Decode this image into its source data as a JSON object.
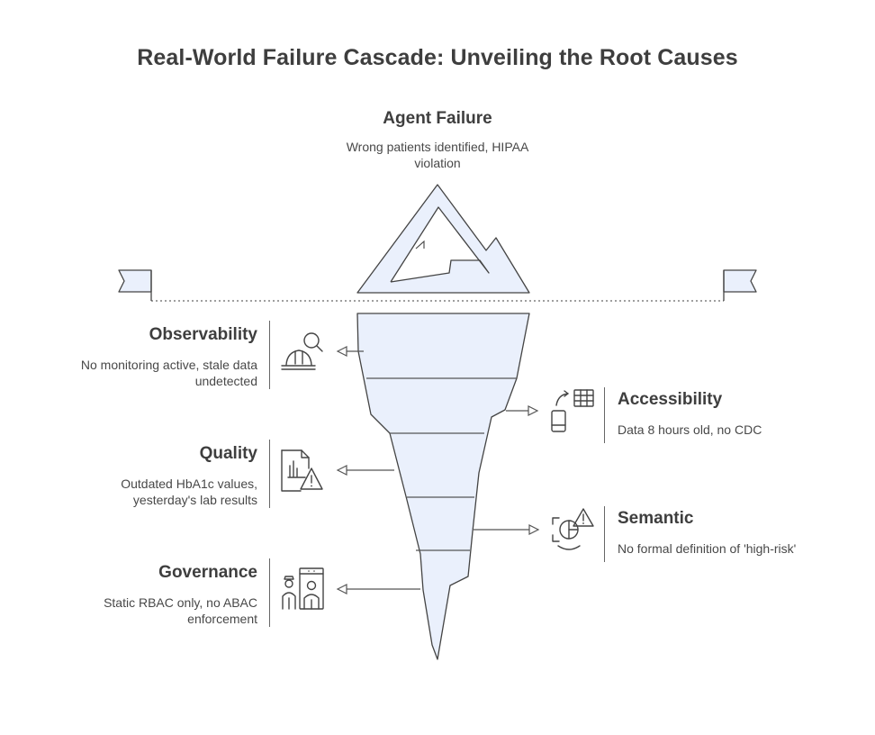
{
  "title": "Real-World Failure Cascade: Unveiling the Root Causes",
  "tip": {
    "heading": "Agent Failure",
    "description": "Wrong patients identified, HIPAA violation"
  },
  "layers": {
    "observability": {
      "heading": "Observability",
      "description": "No monitoring active, stale data undetected",
      "icon": "magnifier-hardhat-icon"
    },
    "accessibility": {
      "heading": "Accessibility",
      "description": "Data 8 hours old, no CDC",
      "icon": "device-transfer-grid-icon"
    },
    "quality": {
      "heading": "Quality",
      "description": "Outdated HbA1c values, yesterday's lab results",
      "icon": "report-warning-icon"
    },
    "semantic": {
      "heading": "Semantic",
      "description": "No formal definition of 'high-risk'",
      "icon": "pie-chart-warning-icon"
    },
    "governance": {
      "heading": "Governance",
      "description": "Static RBAC only, no ABAC enforcement",
      "icon": "users-access-icon"
    }
  },
  "colors": {
    "ice_fill": "#eaf0fc",
    "outline": "#444444",
    "text": "#3e3e3e"
  }
}
